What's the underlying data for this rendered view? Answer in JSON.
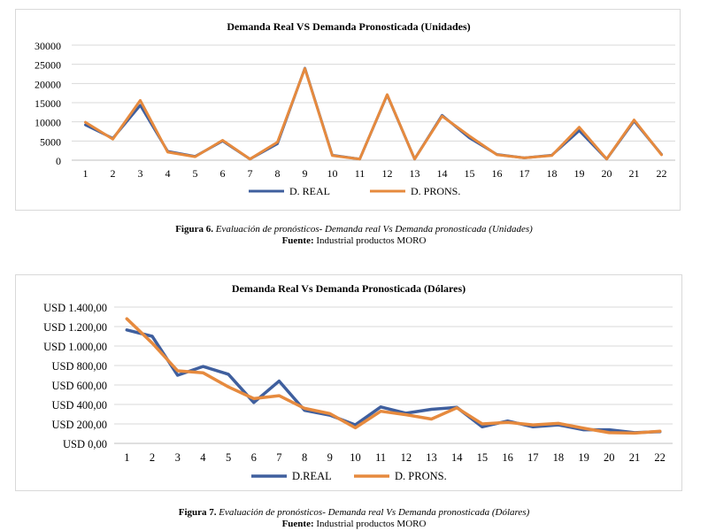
{
  "chart_data": [
    {
      "type": "line",
      "title": "Demanda Real VS Demanda Pronosticada (Unidades)",
      "categories": [
        "1",
        "2",
        "3",
        "4",
        "5",
        "6",
        "7",
        "8",
        "9",
        "10",
        "11",
        "12",
        "13",
        "14",
        "15",
        "16",
        "17",
        "18",
        "19",
        "20",
        "21",
        "22"
      ],
      "yticks": [
        "0",
        "5000",
        "10000",
        "15000",
        "20000",
        "25000",
        "30000"
      ],
      "ylim": [
        0,
        30000
      ],
      "grid": true,
      "legend": "bottom",
      "series": [
        {
          "name": "D. REAL",
          "color": "#3f5f9e",
          "values": [
            9200,
            5700,
            14300,
            2300,
            1000,
            5000,
            300,
            4300,
            24000,
            1300,
            300,
            17000,
            300,
            11700,
            5800,
            1500,
            600,
            1300,
            7700,
            300,
            10200,
            1500
          ]
        },
        {
          "name": "D. PRONS.",
          "color": "#e68a3e",
          "values": [
            9900,
            5500,
            15600,
            2100,
            900,
            5200,
            300,
            4700,
            23900,
            1200,
            300,
            17100,
            300,
            11500,
            6300,
            1400,
            600,
            1200,
            8600,
            300,
            10500,
            1400
          ]
        }
      ]
    },
    {
      "type": "line",
      "title": "Demanda Real Vs Demanda Pronosticada (Dólares)",
      "categories": [
        "1",
        "2",
        "3",
        "4",
        "5",
        "6",
        "7",
        "8",
        "9",
        "10",
        "11",
        "12",
        "13",
        "14",
        "15",
        "16",
        "17",
        "18",
        "19",
        "20",
        "21",
        "22"
      ],
      "yticks": [
        "USD 0,00",
        "USD 200,00",
        "USD 400,00",
        "USD 600,00",
        "USD 800,00",
        "USD 1.000,00",
        "USD 1.200,00",
        "USD 1.400,00"
      ],
      "ylim": [
        0,
        1400
      ],
      "grid": true,
      "legend": "bottom",
      "series": [
        {
          "name": "D.REAL",
          "color": "#3f5f9e",
          "values": [
            1165,
            1100,
            700,
            790,
            710,
            420,
            640,
            340,
            290,
            190,
            375,
            310,
            350,
            370,
            170,
            230,
            170,
            190,
            140,
            140,
            110,
            120
          ]
        },
        {
          "name": "D. PRONS.",
          "color": "#e68a3e",
          "values": [
            1280,
            1030,
            745,
            725,
            580,
            460,
            490,
            360,
            305,
            160,
            330,
            295,
            250,
            365,
            200,
            215,
            190,
            205,
            155,
            110,
            105,
            125
          ]
        }
      ]
    }
  ],
  "captions": [
    {
      "label": "Figura  6.",
      "text": " Evaluación de pronósticos- Demanda real Vs Demanda pronosticada (Unidades)",
      "source_label": "Fuente:",
      "source": " Industrial productos MORO"
    },
    {
      "label": "Figura  7.",
      "text": " Evaluación de pronósticos- Demanda real Vs Demanda pronosticada (Dólares)",
      "source_label": "Fuente:",
      "source": " Industrial productos MORO"
    }
  ]
}
